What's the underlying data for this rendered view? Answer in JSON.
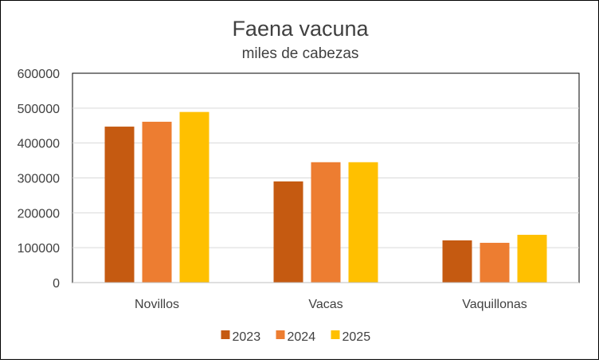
{
  "chart_data": {
    "type": "bar",
    "title": "Faena vacuna",
    "subtitle": "miles de cabezas",
    "xlabel": "",
    "ylabel": "",
    "categories": [
      "Novillos",
      "Vacas",
      "Vaquillonas"
    ],
    "series": [
      {
        "name": "2023",
        "color": "#C55A11",
        "values": [
          447000,
          290000,
          121000
        ]
      },
      {
        "name": "2024",
        "color": "#ED7D31",
        "values": [
          461000,
          345000,
          114000
        ]
      },
      {
        "name": "2025",
        "color": "#FFC000",
        "values": [
          489000,
          345000,
          137000
        ]
      }
    ],
    "ylim": [
      0,
      600000
    ],
    "yticks": [
      "0",
      "100000",
      "200000",
      "300000",
      "400000",
      "500000",
      "600000"
    ],
    "grid": true,
    "legend_position": "bottom",
    "colors": {
      "grid": "#D9D9D9",
      "text": "#404040",
      "plot_border": "#000000"
    }
  }
}
